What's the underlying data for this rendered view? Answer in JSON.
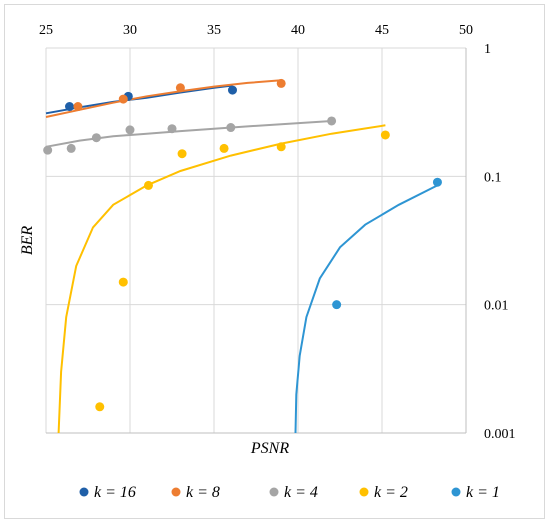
{
  "chart_data": {
    "type": "scatter",
    "xlabel": "PSNR",
    "ylabel": "BER",
    "xlim": [
      25,
      50
    ],
    "ylim": [
      0.001,
      1
    ],
    "y_scale": "log",
    "x_ticks": [
      "25",
      "30",
      "35",
      "40",
      "45",
      "50"
    ],
    "y_ticks": [
      "1",
      "0.1",
      "0.01",
      "0.001"
    ],
    "grid": true,
    "legend_position": "bottom",
    "series": [
      {
        "name": "k = 16",
        "color": "#1f5fa8",
        "points": [
          [
            26.4,
            0.35
          ],
          [
            29.9,
            0.42
          ],
          [
            36.1,
            0.47
          ]
        ],
        "trend": [
          [
            25,
            0.31
          ],
          [
            27,
            0.345
          ],
          [
            29,
            0.38
          ],
          [
            31,
            0.41
          ],
          [
            33,
            0.45
          ],
          [
            35,
            0.49
          ],
          [
            36.1,
            0.51
          ]
        ]
      },
      {
        "name": "k = 8",
        "color": "#ed7d31",
        "points": [
          [
            26.9,
            0.35
          ],
          [
            29.6,
            0.4
          ],
          [
            33.0,
            0.49
          ],
          [
            39.0,
            0.53
          ]
        ],
        "trend": [
          [
            25,
            0.29
          ],
          [
            27,
            0.33
          ],
          [
            29,
            0.375
          ],
          [
            31,
            0.42
          ],
          [
            33,
            0.46
          ],
          [
            35,
            0.5
          ],
          [
            37,
            0.535
          ],
          [
            39,
            0.56
          ]
        ]
      },
      {
        "name": "k = 4",
        "color": "#a5a5a5",
        "points": [
          [
            25.1,
            0.16
          ],
          [
            26.5,
            0.165
          ],
          [
            28.0,
            0.2
          ],
          [
            30.0,
            0.23
          ],
          [
            32.5,
            0.235
          ],
          [
            36.0,
            0.24
          ],
          [
            42.0,
            0.27
          ]
        ],
        "trend": [
          [
            25,
            0.17
          ],
          [
            27,
            0.19
          ],
          [
            29,
            0.205
          ],
          [
            31,
            0.215
          ],
          [
            33,
            0.225
          ],
          [
            35,
            0.235
          ],
          [
            37,
            0.245
          ],
          [
            39,
            0.255
          ],
          [
            42,
            0.27
          ]
        ]
      },
      {
        "name": "k = 2",
        "color": "#ffc000",
        "points": [
          [
            28.2,
            0.0016
          ],
          [
            29.6,
            0.015
          ],
          [
            31.1,
            0.085
          ],
          [
            33.1,
            0.15
          ],
          [
            35.6,
            0.165
          ],
          [
            39.0,
            0.17
          ],
          [
            45.2,
            0.21
          ]
        ],
        "trend": [
          [
            25.75,
            0.001
          ],
          [
            25.9,
            0.003
          ],
          [
            26.2,
            0.008
          ],
          [
            26.8,
            0.02
          ],
          [
            27.8,
            0.04
          ],
          [
            29,
            0.06
          ],
          [
            31,
            0.085
          ],
          [
            33,
            0.11
          ],
          [
            36,
            0.145
          ],
          [
            39,
            0.18
          ],
          [
            42,
            0.215
          ],
          [
            45.2,
            0.25
          ]
        ]
      },
      {
        "name": "k = 1",
        "color": "#2e95d3",
        "points": [
          [
            42.3,
            0.01
          ],
          [
            48.3,
            0.09
          ]
        ],
        "trend": [
          [
            39.85,
            0.001
          ],
          [
            39.9,
            0.002
          ],
          [
            40.1,
            0.004
          ],
          [
            40.5,
            0.008
          ],
          [
            41.3,
            0.016
          ],
          [
            42.5,
            0.028
          ],
          [
            44,
            0.042
          ],
          [
            46,
            0.06
          ],
          [
            48.3,
            0.085
          ]
        ]
      }
    ]
  }
}
